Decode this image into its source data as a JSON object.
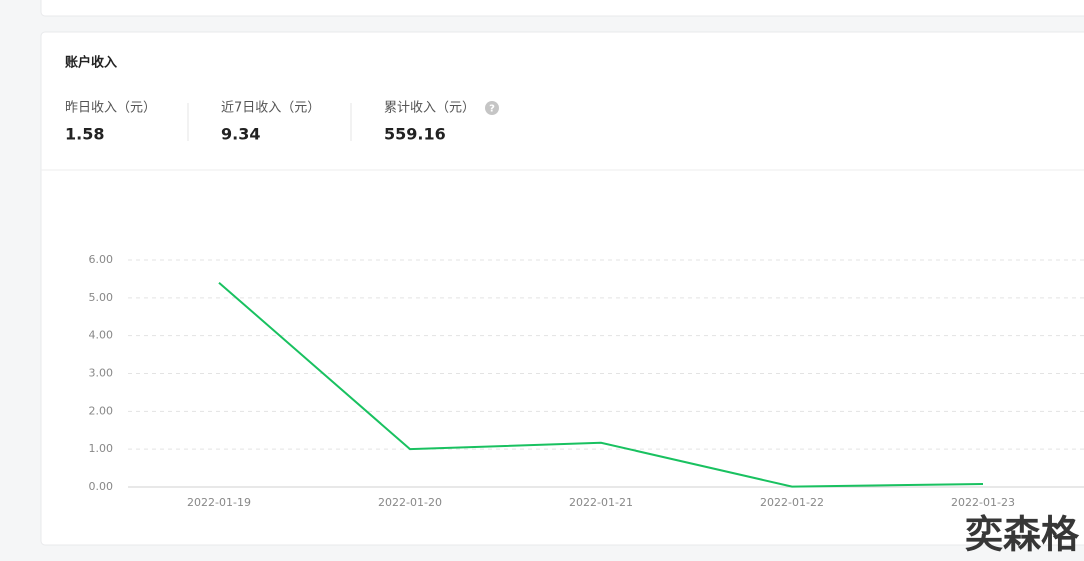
{
  "header": {
    "title": "账户收入"
  },
  "stats": [
    {
      "label": "昨日收入（元）",
      "value": 1.58
    },
    {
      "label": "近7日收入（元）",
      "value": 9.34
    },
    {
      "label": "累计收入（元）",
      "value": 559.16
    }
  ],
  "help_icon": "?",
  "chart_data": {
    "type": "line",
    "categories": [
      "2022-01-19",
      "2022-01-20",
      "2022-01-21",
      "2022-01-22",
      "2022-01-23"
    ],
    "values": [
      5.4,
      1.0,
      1.17,
      0.01,
      0.08
    ],
    "color": "#19c160",
    "ylim": [
      0,
      6
    ],
    "yticks": [
      {
        "value": 0,
        "label": "0.00"
      },
      {
        "value": 1,
        "label": "1.00"
      },
      {
        "value": 2,
        "label": "2.00"
      },
      {
        "value": 3,
        "label": "3.00"
      },
      {
        "value": 4,
        "label": "4.00"
      },
      {
        "value": 5,
        "label": "5.00"
      },
      {
        "value": 6,
        "label": "6.00"
      }
    ],
    "grid": true
  },
  "watermark": "奕森格"
}
